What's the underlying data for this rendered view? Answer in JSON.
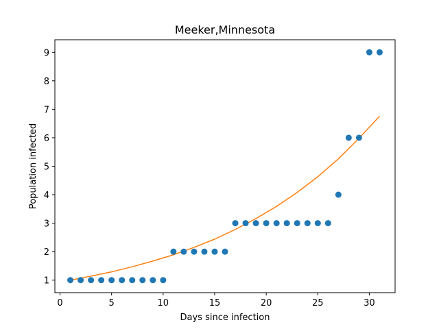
{
  "chart_data": {
    "type": "scatter",
    "title": "Meeker,Minnesota",
    "xlabel": "Days since infection",
    "ylabel": "Population infected",
    "xlim": [
      -0.5,
      32.5
    ],
    "ylim": [
      0.56,
      9.44
    ],
    "xticks": [
      0,
      5,
      10,
      15,
      20,
      25,
      30
    ],
    "yticks": [
      1,
      2,
      3,
      4,
      5,
      6,
      7,
      8,
      9
    ],
    "grid": false,
    "series": [
      {
        "kind": "scatter",
        "color": "#1f77b4",
        "x": [
          1,
          2,
          3,
          4,
          5,
          6,
          7,
          8,
          9,
          10,
          11,
          12,
          13,
          14,
          15,
          16,
          17,
          18,
          19,
          20,
          21,
          22,
          23,
          24,
          25,
          26,
          27,
          28,
          29,
          30,
          31
        ],
        "y": [
          1,
          1,
          1,
          1,
          1,
          1,
          1,
          1,
          1,
          1,
          2,
          2,
          2,
          2,
          2,
          2,
          3,
          3,
          3,
          3,
          3,
          3,
          3,
          3,
          3,
          3,
          4,
          6,
          6,
          9,
          9
        ]
      },
      {
        "kind": "line",
        "color": "#ff7f0e",
        "x": [
          1,
          3,
          5,
          7,
          9,
          11,
          13,
          15,
          17,
          19,
          21,
          23,
          25,
          27,
          29,
          31
        ],
        "y": [
          1.0,
          1.14,
          1.29,
          1.47,
          1.67,
          1.89,
          2.15,
          2.44,
          2.78,
          3.16,
          3.59,
          4.08,
          4.63,
          5.26,
          5.98,
          6.76
        ]
      }
    ]
  }
}
